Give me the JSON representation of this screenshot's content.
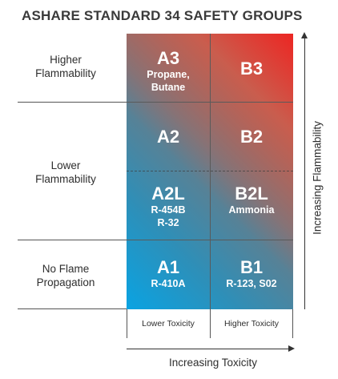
{
  "title": "ASHARE STANDARD 34 SAFETY GROUPS",
  "rows": {
    "higher": [
      "Higher",
      "Flammability"
    ],
    "lower": [
      "Lower",
      "Flammability"
    ],
    "none": [
      "No Flame",
      "Propagation"
    ]
  },
  "cells": {
    "a3": {
      "code": "A3",
      "examples": [
        "Propane,",
        "Butane"
      ]
    },
    "b3": {
      "code": "B3"
    },
    "a2": {
      "code": "A2"
    },
    "b2": {
      "code": "B2"
    },
    "a2l": {
      "code": "A2L",
      "examples": [
        "R-454B",
        "R-32"
      ]
    },
    "b2l": {
      "code": "B2L",
      "examples": [
        "Ammonia"
      ]
    },
    "a1": {
      "code": "A1",
      "examples": [
        "R-410A"
      ]
    },
    "b1": {
      "code": "B1",
      "examples": [
        "R-123, S02"
      ]
    }
  },
  "columns": {
    "lower": "Lower Toxicity",
    "higher": "Higher Toxicity"
  },
  "axes": {
    "x": "Increasing Toxicity",
    "y": "Increasing Flammability"
  },
  "colors": {
    "low_risk": "#0aa3e2",
    "high_risk": "#ec2623"
  }
}
